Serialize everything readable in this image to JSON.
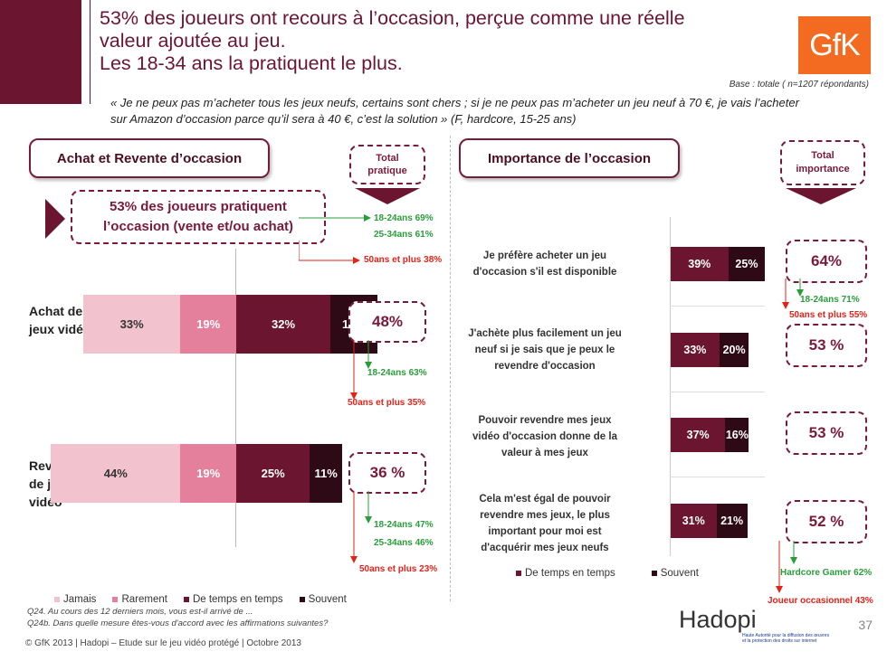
{
  "colors": {
    "jamais": "#f2c2cf",
    "rarement": "#e47f9c",
    "temps": "#6b1530",
    "souvent": "#2e0a16",
    "accent": "#6b1530",
    "green": "#2a9d3a",
    "red": "#e2231a"
  },
  "header": {
    "title_lines": [
      "53% des joueurs ont recours à l’occasion, perçue comme une réelle",
      "valeur ajoutée au jeu.",
      "Les 18-34 ans la pratiquent le plus."
    ],
    "logo": "GfK",
    "base": "Base : totale ( n=1207 répondants)",
    "quote_line1": "« Je ne peux pas m’acheter tous les jeux neufs, certains sont chers ; si je ne peux pas m’acheter un jeu neuf à 70 €, je vais l’acheter",
    "quote_line2": "sur Amazon d’occasion parce qu’il sera à 40 €, c’est la solution » (F, hardcore, 15-25 ans)"
  },
  "left": {
    "heading": "Achat et Revente d’occasion",
    "total_label": "Total\npratique",
    "highlight": "53% des joueurs pratiquent\nl’occasion (vente et/ou achat)",
    "highlight_notes": [
      {
        "label": "18-24ans",
        "value": "69%",
        "tone": "green"
      },
      {
        "label": "25-34ans",
        "value": "61%",
        "tone": "green"
      },
      {
        "label": "50ans et plus",
        "value": "38%",
        "tone": "red"
      }
    ],
    "rows": [
      {
        "label": "Achat de\njeux vidéo",
        "total": "48%",
        "notes": [
          {
            "label": "18-24ans",
            "value": "63%",
            "tone": "green"
          },
          {
            "label": "50ans et plus",
            "value": "35%",
            "tone": "red"
          }
        ]
      },
      {
        "label": "Revente\nde jeux\nvidéo",
        "total": "36 %",
        "notes": [
          {
            "label": "18-24ans",
            "value": "47%",
            "tone": "green"
          },
          {
            "label": "25-34ans",
            "value": "46%",
            "tone": "green"
          },
          {
            "label": "50ans et plus",
            "value": "23%",
            "tone": "red"
          }
        ]
      }
    ],
    "legend": [
      "Jamais",
      "Rarement",
      "De temps en temps",
      "Souvent"
    ]
  },
  "right": {
    "heading": "Importance de l’occasion",
    "total_label": "Total\nimportance",
    "statements": [
      {
        "text": "Je préfère acheter un jeu\nd'occasion s'il est disponible",
        "total": "64%",
        "notes": [
          {
            "label": "18-24ans",
            "value": "71%",
            "tone": "green"
          },
          {
            "label": "50ans et plus",
            "value": "55%",
            "tone": "red"
          }
        ]
      },
      {
        "text": "J'achète plus facilement un jeu\nneuf si je sais que je peux le\nrevendre d'occasion",
        "total": "53 %",
        "notes": []
      },
      {
        "text": "Pouvoir revendre mes jeux\nvidéo d'occasion donne de la\nvaleur à mes jeux",
        "total": "53 %",
        "notes": []
      },
      {
        "text": "Cela m'est égal de pouvoir\nrevendre mes jeux, le plus\nimportant pour moi est\nd'acquérir mes jeux neufs",
        "total": "52 %",
        "notes": [
          {
            "label": "Hardcore Gamer",
            "value": "62%",
            "tone": "green"
          },
          {
            "label": "Joueur occasionnel",
            "value": "43%",
            "tone": "red"
          }
        ]
      }
    ],
    "legend": [
      "De temps en temps",
      "Souvent"
    ]
  },
  "chart_data": [
    {
      "type": "bar",
      "title": "Achat et Revente d’occasion",
      "orientation": "horizontal-stacked-diverging",
      "categories": [
        "Achat de jeux vidéo",
        "Revente de jeux vidéo"
      ],
      "series": [
        {
          "name": "Jamais",
          "values": [
            33,
            44
          ],
          "labels": [
            "33%",
            "44%"
          ]
        },
        {
          "name": "Rarement",
          "values": [
            19,
            19
          ],
          "labels": [
            "19%",
            "19%"
          ]
        },
        {
          "name": "De temps en temps",
          "values": [
            32,
            25
          ],
          "labels": [
            "32%",
            "25%"
          ]
        },
        {
          "name": "Souvent",
          "values": [
            16,
            11
          ],
          "labels": [
            "16%",
            "11%"
          ]
        }
      ]
    },
    {
      "type": "bar",
      "title": "Importance de l’occasion",
      "orientation": "horizontal-stacked",
      "categories": [
        "Je préfère acheter un jeu d'occasion s'il est disponible",
        "J'achète plus facilement un jeu neuf si je sais que je peux le revendre d'occasion",
        "Pouvoir revendre mes jeux vidéo d'occasion donne de la valeur à mes jeux",
        "Cela m'est égal de pouvoir revendre mes jeux, le plus important pour moi est d'acquérir mes jeux neufs"
      ],
      "series": [
        {
          "name": "De temps en temps",
          "values": [
            39,
            33,
            37,
            31
          ],
          "labels": [
            "39%",
            "33%",
            "37%",
            "31%"
          ]
        },
        {
          "name": "Souvent",
          "values": [
            25,
            20,
            16,
            21
          ],
          "labels": [
            "25%",
            "20%",
            "16%",
            "21%"
          ]
        }
      ]
    }
  ],
  "footer": {
    "q1": "Q24. Au cours des 12 derniers mois, vous est-il arrivé de ...",
    "q2": "Q24b. Dans quelle mesure êtes-vous d'accord avec les affirmations suivantes?",
    "copyright": "© GfK 2013 | Hadopi – Etude sur le jeu vidéo protégé | Octobre 2013",
    "hadopi": "Hadopi",
    "hadopi_sub": "Haute Autorité pour la diffusion des œuvres et la protection des droits sur internet",
    "page": "37"
  }
}
